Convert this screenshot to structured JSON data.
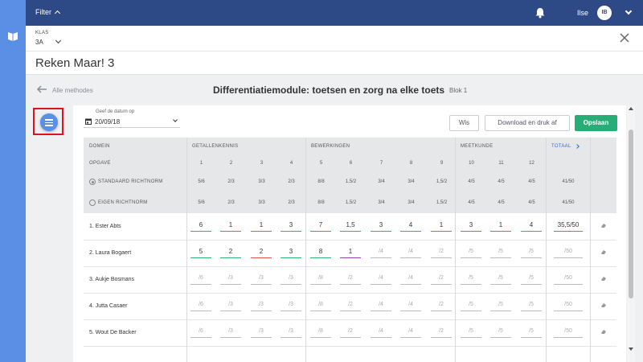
{
  "topbar": {
    "filter_label": "Filter",
    "username": "Ilse",
    "avatar_initials": "IB"
  },
  "klas": {
    "label": "KLAS",
    "value": "3A"
  },
  "app_title": "Reken Maar! 3",
  "nav": {
    "back_label": "Alle methodes",
    "module_title": "Differentiatiemodule: toetsen en zorg na elke toets",
    "block": "Blok 1"
  },
  "date": {
    "label": "Geef de datum op",
    "value": "20/09/18"
  },
  "buttons": {
    "wis": "Wis",
    "print": "Download en druk af",
    "save": "Opslaan"
  },
  "table": {
    "domein_label": "DOMEIN",
    "domains": [
      "GETALLENKENNIS",
      "BEWERKINGEN",
      "MEETKUNDE"
    ],
    "totaal_label": "TOTAAL",
    "opgave_label": "OPGAVE",
    "opgaven": [
      "1",
      "2",
      "3",
      "4",
      "5",
      "6",
      "7",
      "8",
      "9",
      "10",
      "11",
      "12"
    ],
    "standaard": {
      "label": "STANDAARD RICHTNORM",
      "values": [
        "5/6",
        "2/3",
        "3/3",
        "2/3",
        "8/8",
        "1,5/2",
        "3/4",
        "3/4",
        "1,5/2",
        "4/5",
        "4/5",
        "4/5"
      ],
      "total": "41/50"
    },
    "eigen": {
      "label": "EIGEN RICHTNORM",
      "values": [
        "5/6",
        "2/3",
        "3/3",
        "2/3",
        "8/8",
        "1,5/2",
        "3/4",
        "3/4",
        "1,5/2",
        "4/5",
        "4/5",
        "4/5"
      ],
      "total": "41/50"
    },
    "students": [
      {
        "name": "1. Ester Abts",
        "scores": [
          "6",
          "1",
          "1",
          "3",
          "7",
          "1,5",
          "3",
          "4",
          "1",
          "3",
          "1",
          "4"
        ],
        "total": "35,5/50"
      },
      {
        "name": "2. Laura Bogaert",
        "scores": [
          "5",
          "2",
          "2",
          "3",
          "8",
          "1",
          "/4",
          "/4",
          "/2",
          "/5",
          "/5",
          "/5"
        ],
        "total": "/50"
      },
      {
        "name": "3. Aukje Bosmans",
        "scores": [
          "/6",
          "/3",
          "/3",
          "/3",
          "/8",
          "/2",
          "/4",
          "/4",
          "/2",
          "/5",
          "/5",
          "/5"
        ],
        "total": "/50"
      },
      {
        "name": "4. Jutta Casaer",
        "scores": [
          "/6",
          "/3",
          "/3",
          "/3",
          "/8",
          "/2",
          "/4",
          "/4",
          "/2",
          "/5",
          "/5",
          "/5"
        ],
        "total": "/50"
      },
      {
        "name": "5. Wout De Backer",
        "scores": [
          "/6",
          "/3",
          "/3",
          "/3",
          "/8",
          "/2",
          "/4",
          "/4",
          "/2",
          "/5",
          "/5",
          "/5"
        ],
        "total": "/50"
      }
    ]
  },
  "colors": {
    "topbar": "#2d4a86",
    "sidebar": "#5b8fe6",
    "save": "#27ae77",
    "pass": "#2bb673",
    "fail": "#e8574a",
    "partial": "#8e44ad"
  },
  "score_status": [
    [
      "pass",
      "fail",
      "fail",
      "pass",
      "fail",
      "pass",
      "pass",
      "pass",
      "fail",
      "fail",
      "fail",
      "pass",
      "fail"
    ],
    [
      "pass",
      "pass",
      "fail",
      "pass",
      "pass",
      "partial",
      "none",
      "none",
      "none",
      "none",
      "none",
      "none",
      "none"
    ]
  ]
}
